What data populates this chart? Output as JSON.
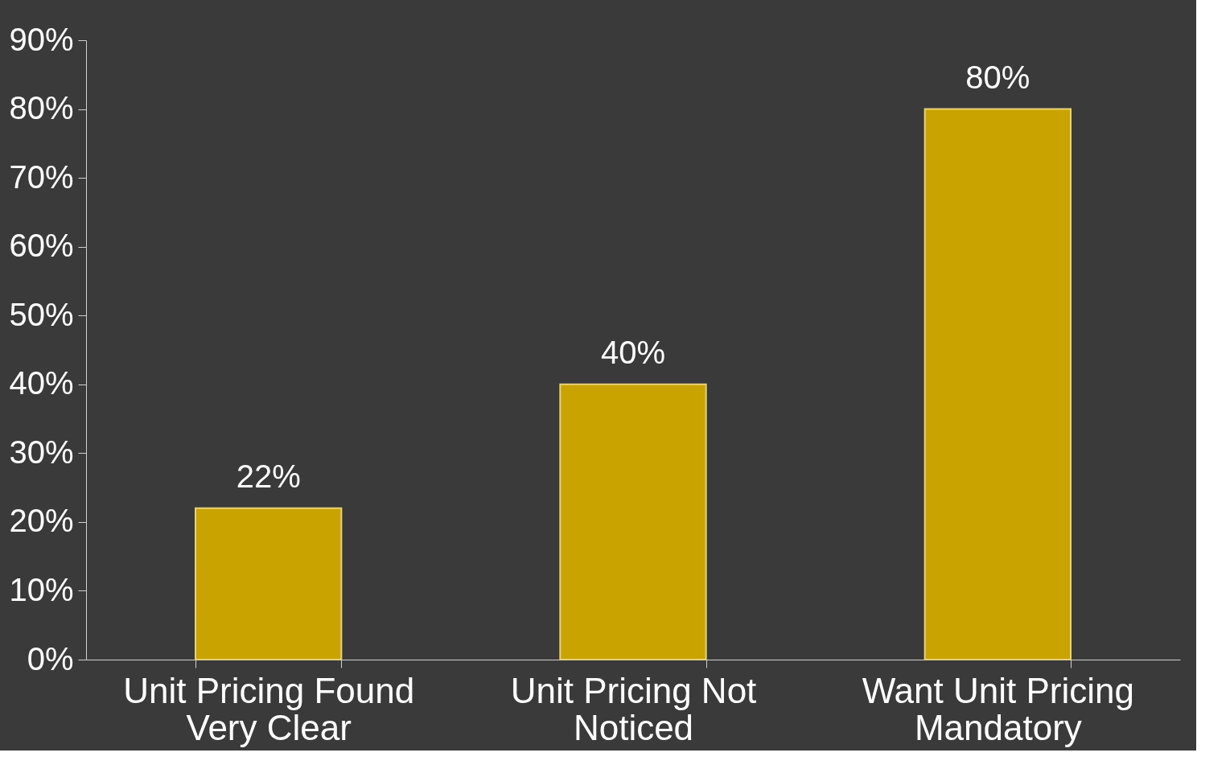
{
  "chart_data": {
    "type": "bar",
    "categories": [
      "Unit Pricing Found Very Clear",
      "Unit Pricing Not Noticed",
      "Want Unit Pricing Mandatory"
    ],
    "values": [
      22,
      40,
      80
    ],
    "color": "#c9a300",
    "value_labels": [
      "22%",
      "40%",
      "80%"
    ],
    "ylim": [
      0,
      90
    ],
    "yticks": [
      {
        "value": 0,
        "label": "0%"
      },
      {
        "value": 10,
        "label": "10%"
      },
      {
        "value": 20,
        "label": "20%"
      },
      {
        "value": 30,
        "label": "30%"
      },
      {
        "value": 40,
        "label": "40%"
      },
      {
        "value": 50,
        "label": "50%"
      },
      {
        "value": 60,
        "label": "60%"
      },
      {
        "value": 70,
        "label": "70%"
      },
      {
        "value": 80,
        "label": "80%"
      },
      {
        "value": 90,
        "label": "90%"
      }
    ],
    "grid": false
  }
}
